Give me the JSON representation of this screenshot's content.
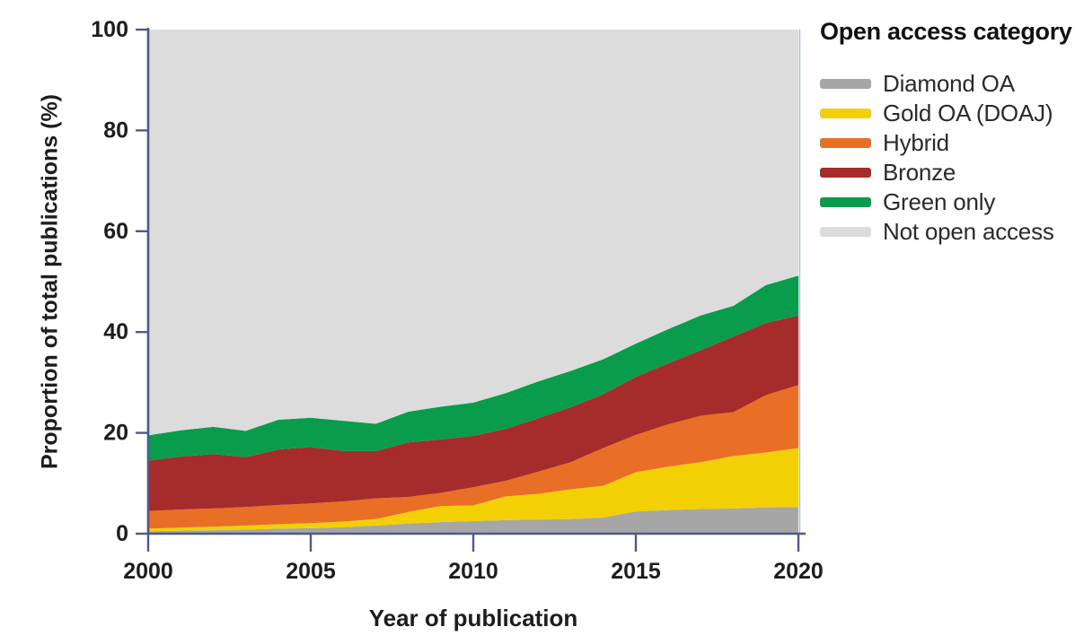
{
  "style": {
    "axis_color": "#4f5a8b",
    "frame_right_color": "#aab1cb",
    "text_color": "#1d1d1f",
    "background_color": "#ffffff"
  },
  "chart_data": {
    "type": "area",
    "stacked": true,
    "title": "",
    "xlabel": "Year of publication",
    "ylabel": "Proportion of total publications (%)",
    "legend_title": "Open access category",
    "legend_position": "right",
    "grid": false,
    "xlim": [
      2000,
      2020
    ],
    "ylim": [
      0,
      100
    ],
    "x_ticks": [
      2000,
      2005,
      2010,
      2015,
      2020
    ],
    "y_ticks": [
      0,
      20,
      40,
      60,
      80,
      100
    ],
    "x": [
      2000,
      2001,
      2002,
      2003,
      2004,
      2005,
      2006,
      2007,
      2008,
      2009,
      2010,
      2011,
      2012,
      2013,
      2014,
      2015,
      2016,
      2017,
      2018,
      2019,
      2020
    ],
    "series": [
      {
        "name": "Diamond OA",
        "color": "#a6a6a6",
        "values": [
          0.5,
          0.6,
          0.7,
          0.8,
          1.0,
          1.1,
          1.3,
          1.6,
          2.0,
          2.3,
          2.5,
          2.7,
          2.8,
          2.9,
          3.2,
          4.4,
          4.7,
          4.9,
          5.0,
          5.2,
          5.3
        ]
      },
      {
        "name": "Gold OA (DOAJ)",
        "color": "#f2d005",
        "values": [
          0.5,
          0.6,
          0.7,
          0.8,
          0.9,
          1.0,
          1.1,
          1.3,
          2.3,
          3.2,
          3.1,
          4.7,
          5.1,
          5.9,
          6.3,
          7.8,
          8.6,
          9.3,
          10.4,
          10.9,
          11.7
        ]
      },
      {
        "name": "Hybrid",
        "color": "#e86f25",
        "values": [
          3.5,
          3.6,
          3.6,
          3.7,
          3.8,
          3.9,
          4.0,
          4.1,
          3.0,
          2.6,
          3.6,
          3.1,
          4.4,
          5.4,
          7.5,
          7.4,
          8.4,
          9.2,
          8.7,
          11.4,
          12.5
        ]
      },
      {
        "name": "Bronze",
        "color": "#a62b2b",
        "values": [
          10.0,
          10.5,
          10.8,
          9.9,
          11.0,
          11.2,
          10.0,
          9.4,
          10.8,
          10.6,
          10.2,
          10.3,
          10.6,
          10.9,
          10.7,
          11.5,
          12.1,
          13.0,
          15.0,
          14.3,
          13.8
        ]
      },
      {
        "name": "Green only",
        "color": "#0a9c4d",
        "values": [
          5.0,
          5.2,
          5.4,
          5.2,
          5.9,
          5.8,
          6.0,
          5.4,
          6.1,
          6.5,
          6.6,
          7.1,
          7.3,
          7.2,
          6.9,
          6.6,
          6.8,
          6.9,
          6.1,
          7.5,
          7.9
        ]
      },
      {
        "name": "Not open access",
        "color": "#dcdcdc",
        "values": [
          80.5,
          79.5,
          78.8,
          79.6,
          77.4,
          77.0,
          77.6,
          78.2,
          75.8,
          74.8,
          74.0,
          72.1,
          69.8,
          67.7,
          65.4,
          62.3,
          59.4,
          56.7,
          54.8,
          50.7,
          48.8
        ]
      }
    ]
  }
}
